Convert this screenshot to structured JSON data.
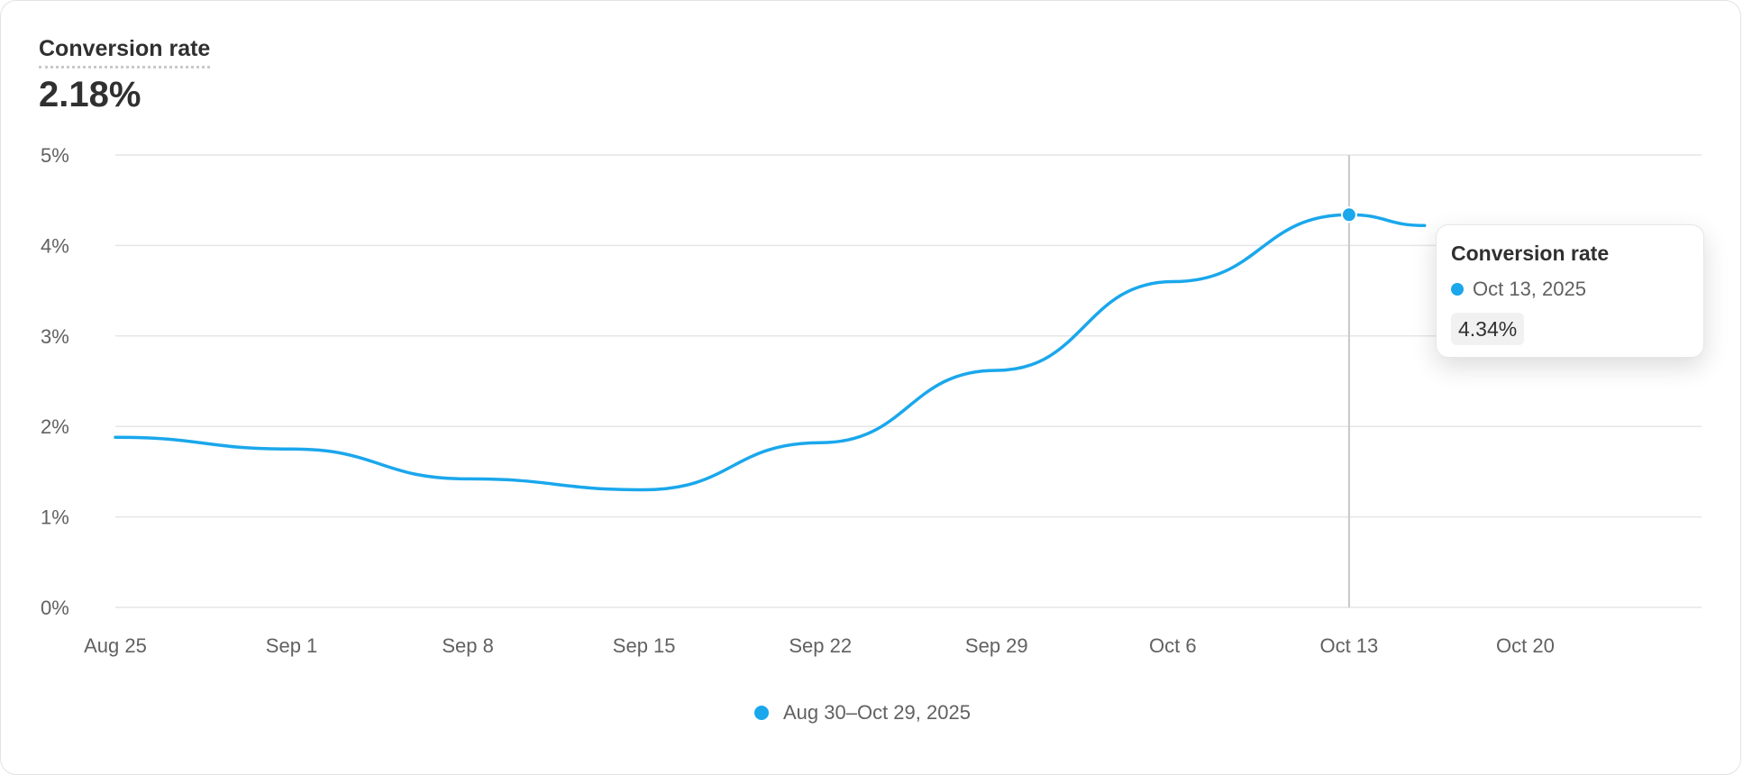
{
  "card": {
    "title": "Conversion rate",
    "value": "2.18%"
  },
  "colors": {
    "series": "#1aa7ec",
    "grid": "#e6e6e6",
    "crosshair": "#c8c8c8"
  },
  "chart_data": {
    "type": "line",
    "title": "",
    "xlabel": "",
    "ylabel": "",
    "ylim": [
      0,
      5
    ],
    "y_ticks": [
      "0%",
      "1%",
      "2%",
      "3%",
      "4%",
      "5%"
    ],
    "x_ticks": [
      "Aug 25",
      "Sep 1",
      "Sep 8",
      "Sep 15",
      "Sep 22",
      "Sep 29",
      "Oct 6",
      "Oct 13",
      "Oct 20"
    ],
    "x_tick_dates": [
      "2025-08-25",
      "2025-09-01",
      "2025-09-08",
      "2025-09-15",
      "2025-09-22",
      "2025-09-29",
      "2025-10-06",
      "2025-10-13",
      "2025-10-20"
    ],
    "xlim": [
      "2025-08-25",
      "2025-10-27"
    ],
    "grid": true,
    "legend_position": "bottom-center",
    "series": [
      {
        "name": "Aug 30–Oct 29, 2025",
        "points": [
          {
            "x": "2025-08-25",
            "y": 1.88
          },
          {
            "x": "2025-09-01",
            "y": 1.75
          },
          {
            "x": "2025-09-08",
            "y": 1.42
          },
          {
            "x": "2025-09-15",
            "y": 1.3
          },
          {
            "x": "2025-09-22",
            "y": 1.82
          },
          {
            "x": "2025-09-29",
            "y": 2.62
          },
          {
            "x": "2025-10-06",
            "y": 3.6
          },
          {
            "x": "2025-10-13",
            "y": 4.34
          },
          {
            "x": "2025-10-16",
            "y": 4.22
          }
        ]
      }
    ],
    "tooltip": {
      "title": "Conversion rate",
      "date": "Oct 13, 2025",
      "x": "2025-10-13",
      "value": "4.34%",
      "y": 4.34
    }
  }
}
